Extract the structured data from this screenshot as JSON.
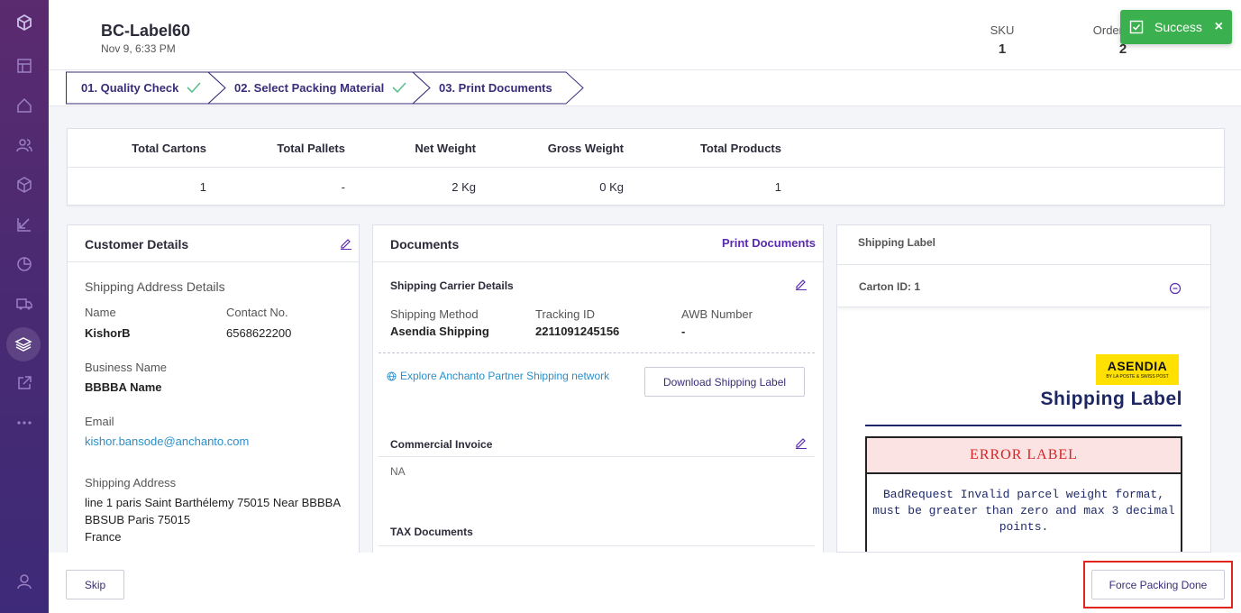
{
  "header": {
    "title": "BC-Label60",
    "subtitle": "Nov 9, 6:33 PM",
    "stats": [
      {
        "label": "SKU",
        "value": "1"
      },
      {
        "label": "Order Units",
        "value": "2"
      }
    ]
  },
  "toast": {
    "message": "Success",
    "close_label": "×",
    "color": "#3bb04f"
  },
  "steps": [
    {
      "label": "01. Quality Check",
      "done": true
    },
    {
      "label": "02. Select Packing Material",
      "done": true
    },
    {
      "label": "03. Print Documents",
      "done": false
    }
  ],
  "summary": {
    "headers": [
      "Total Cartons",
      "Total Pallets",
      "Net Weight",
      "Gross Weight",
      "Total Products"
    ],
    "values": [
      "1",
      "-",
      "2 Kg",
      "0 Kg",
      "1"
    ]
  },
  "customer": {
    "title": "Customer Details",
    "section": "Shipping Address Details",
    "name_label": "Name",
    "name_value": "KishorB",
    "contact_label": "Contact No.",
    "contact_value": "6568622200",
    "business_label": "Business Name",
    "business_value": "BBBBA Name",
    "email_label": "Email",
    "email_value": "kishor.bansode@anchanto.com",
    "address_label": "Shipping Address",
    "address_lines": [
      "line 1 paris Saint Barthélemy 75015 Near BBBBA",
      "BBSUB Paris 75015",
      "France"
    ]
  },
  "documents": {
    "title": "Documents",
    "print_label": "Print Documents",
    "carrier_title": "Shipping Carrier Details",
    "method_label": "Shipping Method",
    "method_value": "Asendia Shipping",
    "tracking_label": "Tracking ID",
    "tracking_value": "2211091245156",
    "awb_label": "AWB Number",
    "awb_value": "-",
    "explore_label": "Explore Anchanto Partner Shipping network",
    "download_label": "Download Shipping Label",
    "invoice_title": "Commercial Invoice",
    "invoice_value": "NA",
    "tax_title": "TAX Documents"
  },
  "shipping_label": {
    "title": "Shipping Label",
    "carton": "Carton ID: 1",
    "brand": "ASENDIA",
    "brand_sub": "BY LA POSTE & SWISS POST",
    "heading": "Shipping Label",
    "error_title": "ERROR LABEL",
    "error_message": "BadRequest Invalid parcel weight format, must be greater than zero and max 3 decimal points."
  },
  "footer": {
    "skip_label": "Skip",
    "force_label": "Force Packing Done",
    "highlight_color": "#e1251b"
  },
  "colors": {
    "accent": "#5a2bb0",
    "link": "#2a8fc9",
    "success": "#3bb04f",
    "sidebar": "#4a2a72"
  }
}
